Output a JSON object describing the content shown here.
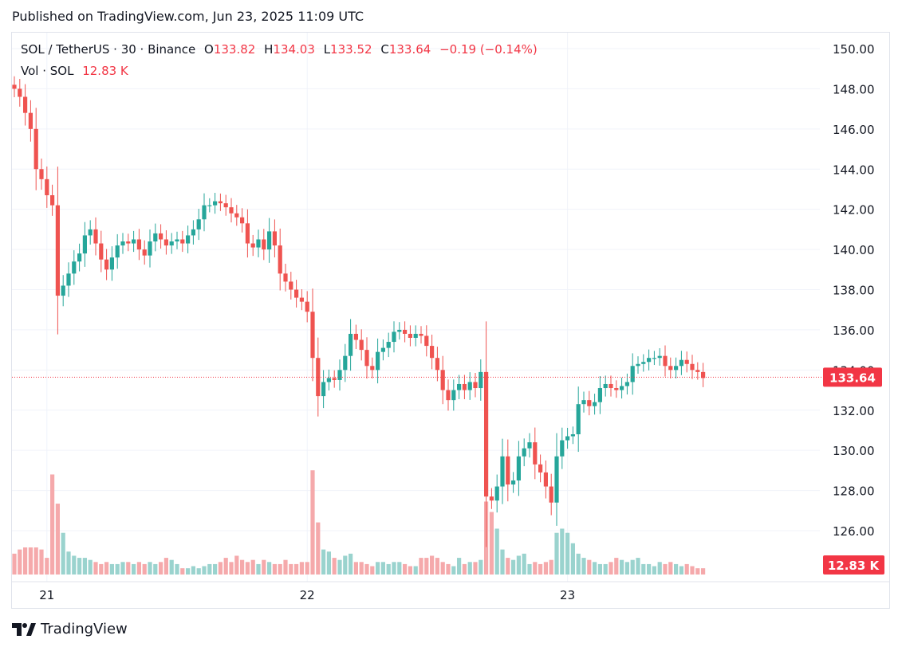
{
  "header": {
    "published": "Published on TradingView.com, Jun 23, 2025 11:09 UTC"
  },
  "legend": {
    "symbol": "SOL / TetherUS · 30 · Binance",
    "open_label": "O",
    "open": "133.82",
    "high_label": "H",
    "high": "134.03",
    "low_label": "L",
    "low": "133.52",
    "close_label": "C",
    "close": "133.64",
    "change": "−0.19 (−0.14%)",
    "vol_label": "Vol · SOL",
    "vol_value": "12.83 K"
  },
  "footer": {
    "brand": "TradingView",
    "logo_icon": "tradingview-logo-icon"
  },
  "colors": {
    "up": "#26a69a",
    "down": "#ef5350",
    "up_vol": "#9ad3ce",
    "down_vol": "#f5a9ab",
    "grid": "#f0f3fa",
    "price_line": "#f23645"
  },
  "chart_data": {
    "type": "candlestick",
    "symbol": "SOL / TetherUS",
    "interval": "30",
    "exchange": "Binance",
    "y_range": [
      124.0,
      151.0
    ],
    "y_ticks": [
      "150.00",
      "148.00",
      "146.00",
      "144.00",
      "142.00",
      "140.00",
      "138.00",
      "136.00",
      "134.00",
      "132.00",
      "130.00",
      "128.00",
      "126.00"
    ],
    "x_ticks": [
      {
        "label": "21",
        "index": 6
      },
      {
        "label": "22",
        "index": 54
      },
      {
        "label": "23",
        "index": 102
      }
    ],
    "last_price": "133.64",
    "last_volume": "12.83 K",
    "volume_max": 65,
    "closes": [
      148.0,
      147.6,
      146.8,
      146.0,
      144.0,
      143.5,
      142.7,
      142.2,
      137.7,
      138.2,
      138.8,
      139.4,
      139.8,
      140.7,
      141.0,
      140.3,
      139.5,
      139.0,
      139.6,
      140.2,
      140.4,
      140.3,
      140.5,
      140.0,
      139.7,
      140.4,
      140.8,
      140.5,
      140.2,
      140.4,
      140.5,
      140.3,
      140.7,
      141.0,
      141.5,
      142.2,
      142.2,
      142.4,
      142.3,
      142.1,
      141.8,
      141.6,
      141.3,
      140.3,
      140.1,
      140.5,
      140.0,
      140.9,
      140.2,
      138.8,
      138.4,
      138.0,
      137.6,
      137.4,
      136.9,
      134.6,
      132.7,
      133.4,
      133.6,
      133.5,
      134.0,
      134.7,
      135.8,
      135.5,
      135.0,
      134.2,
      134.0,
      134.9,
      135.1,
      135.4,
      135.9,
      136.0,
      135.8,
      135.6,
      135.8,
      135.7,
      135.2,
      134.6,
      134.0,
      133.0,
      132.5,
      133.0,
      133.3,
      133.0,
      133.4,
      133.1,
      133.9,
      127.7,
      127.5,
      128.2,
      129.7,
      128.3,
      128.5,
      129.7,
      130.1,
      130.4,
      129.3,
      128.9,
      128.2,
      127.4,
      129.7,
      130.5,
      130.7,
      130.8,
      132.3,
      132.5,
      132.2,
      132.4,
      133.1,
      133.3,
      133.1,
      133.0,
      133.2,
      133.4,
      134.2,
      134.3,
      134.4,
      134.6,
      134.6,
      134.7,
      134.2,
      134.0,
      134.2,
      134.5,
      134.3,
      134.0,
      133.9,
      133.6
    ],
    "volumes": [
      10,
      12,
      13,
      13,
      13,
      12,
      8,
      48,
      34,
      20,
      11,
      9,
      8,
      8,
      7,
      6,
      5,
      6,
      5,
      5,
      6,
      6,
      5,
      6,
      5,
      6,
      5,
      6,
      8,
      7,
      5,
      3,
      3,
      4,
      3,
      4,
      5,
      5,
      6,
      8,
      6,
      9,
      7,
      6,
      7,
      5,
      7,
      6,
      5,
      5,
      7,
      5,
      5,
      6,
      6,
      50,
      25,
      12,
      11,
      8,
      7,
      9,
      10,
      6,
      6,
      5,
      4,
      6,
      6,
      5,
      6,
      6,
      5,
      4,
      4,
      8,
      8,
      9,
      8,
      6,
      5,
      4,
      8,
      5,
      6,
      6,
      7,
      35,
      30,
      22,
      12,
      8,
      7,
      9,
      10,
      5,
      6,
      5,
      6,
      7,
      20,
      22,
      20,
      15,
      10,
      8,
      7,
      6,
      5,
      5,
      6,
      8,
      7,
      6,
      7,
      8,
      5,
      5,
      4,
      6,
      5,
      6,
      5,
      4,
      5,
      4,
      3,
      3
    ]
  }
}
